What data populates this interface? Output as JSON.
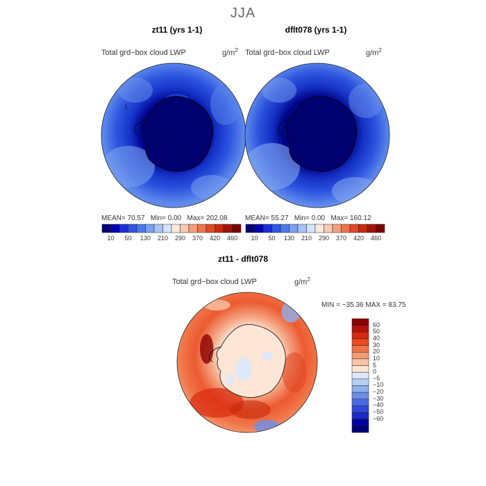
{
  "title": "JJA",
  "panels": [
    {
      "title": "zt11 (yrs 1-1)",
      "variable": "Total grd−box cloud LWP",
      "units_base": "g/m",
      "units_exp": "2",
      "stats": {
        "mean_label": "MEAN=",
        "mean": "70.57",
        "min_label": "Min=",
        "min": "0.00",
        "max_label": "Max=",
        "max": "202.08"
      }
    },
    {
      "title": "dflt078 (yrs 1-1)",
      "variable": "Total grd−box cloud LWP",
      "units_base": "g/m",
      "units_exp": "2",
      "stats": {
        "mean_label": "MEAN=",
        "mean": "55.27",
        "min_label": "Min=",
        "min": "0.00",
        "max_label": "Max=",
        "max": "160.12"
      }
    }
  ],
  "colorbar_seq": {
    "colors": [
      "#00007a",
      "#0000b4",
      "#1a2fd8",
      "#2f56e6",
      "#4d7ae8",
      "#7aa0ee",
      "#a8c3f4",
      "#d6e4fa",
      "#fbe9df",
      "#f8c8b0",
      "#f4a07e",
      "#ec7550",
      "#e04a26",
      "#c82a0e",
      "#a01505",
      "#7a0000"
    ],
    "labels": [
      "10",
      "50",
      "130",
      "210",
      "290",
      "370",
      "420",
      "460"
    ]
  },
  "difference": {
    "title": "zt11 - dflt078",
    "variable": "Total grd−box cloud LWP",
    "units_base": "g/m",
    "units_exp": "2",
    "min_max_text": "MIN = −35.36 MAX =  83.75",
    "colorbar": {
      "colors": [
        "#8a0000",
        "#b81208",
        "#d82a10",
        "#ec4a20",
        "#f07448",
        "#f49a74",
        "#f8c3a6",
        "#fde6d6",
        "#dde8f8",
        "#b8cff4",
        "#8fb0ee",
        "#6d8ee8",
        "#4a6ae2",
        "#2f4adc",
        "#1a2ac8",
        "#0000a0",
        "#00007a"
      ],
      "labels": [
        "60",
        "50",
        "40",
        "30",
        "20",
        "10",
        "5",
        "0",
        "−5",
        "−10",
        "−20",
        "−30",
        "−40",
        "−50",
        "−60"
      ]
    }
  }
}
